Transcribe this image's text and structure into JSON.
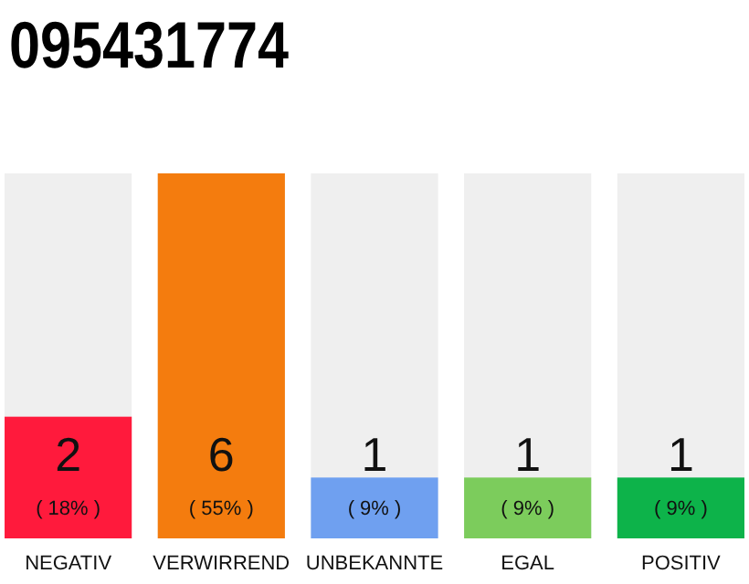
{
  "chart_data": {
    "type": "bar",
    "title": "095431774",
    "categories": [
      "NEGATIV",
      "VERWIRREND",
      "UNBEKANNTE",
      "EGAL",
      "POSITIV"
    ],
    "values": [
      2,
      6,
      1,
      1,
      1
    ],
    "colors": [
      "#ff1a3c",
      "#f47c0e",
      "#6fa0f0",
      "#7ccc5c",
      "#0db34a"
    ],
    "ylim": [
      0,
      6
    ],
    "data_labels": true,
    "annotations": [
      "( 18% )",
      "( 55% )",
      "( 9% )",
      "( 9% )",
      "( 9% )"
    ]
  }
}
